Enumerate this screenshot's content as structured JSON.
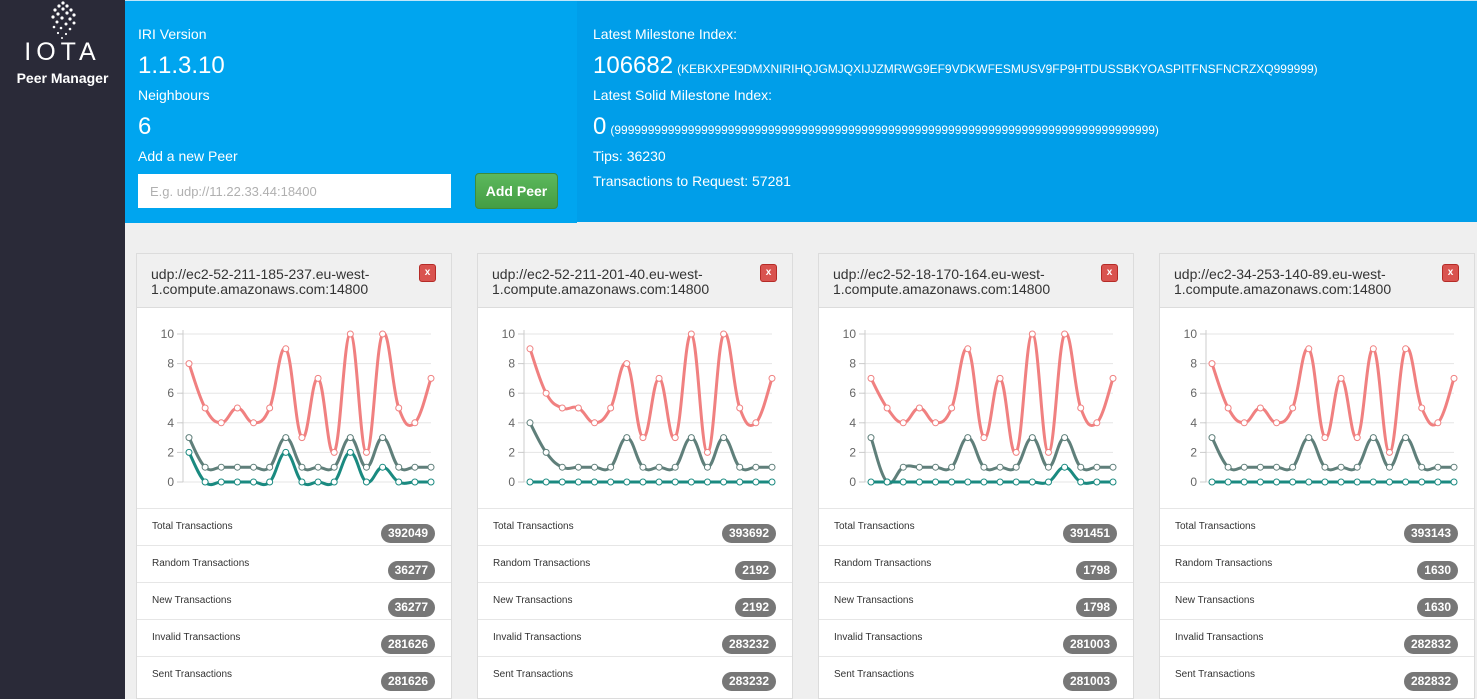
{
  "brand": {
    "name": "IOTA",
    "subtitle": "Peer Manager"
  },
  "header": {
    "iri_version_label": "IRI Version",
    "iri_version": "1.1.3.10",
    "neighbours_label": "Neighbours",
    "neighbours": "6",
    "add_peer_label": "Add a new Peer",
    "add_peer_placeholder": "E.g. udp://11.22.33.44:18400",
    "add_peer_button": "Add Peer",
    "latest_milestone_label": "Latest Milestone Index:",
    "latest_milestone": "106682",
    "latest_milestone_hash": "(KEBKXPE9DMXNIRIHQJGMJQXIJJZMRWG9EF9VDKWFESMUSV9FP9HTDUSSBKYOASPITFNSFNCRZXQ999999)",
    "latest_solid_label": "Latest Solid Milestone Index:",
    "latest_solid": "0",
    "latest_solid_hash": "(999999999999999999999999999999999999999999999999999999999999999999999999999999999)",
    "tips": "Tips: 36230",
    "tx_to_request": "Transactions to Request: 57281"
  },
  "colors": {
    "series_all": "#f08080",
    "series_random": "#5f7f7a",
    "series_new": "#1a8a80",
    "badge": "#777777"
  },
  "stat_labels": [
    "Total Transactions",
    "Random Transactions",
    "New Transactions",
    "Invalid Transactions",
    "Sent Transactions"
  ],
  "peers": [
    {
      "address": "udp://ec2-52-211-185-237.eu-west-1.compute.amazonaws.com:14800",
      "close": "x",
      "stats": [
        "392049",
        "36277",
        "36277",
        "281626",
        "281626"
      ]
    },
    {
      "address": "udp://ec2-52-211-201-40.eu-west-1.compute.amazonaws.com:14800",
      "close": "x",
      "stats": [
        "393692",
        "2192",
        "2192",
        "283232",
        "283232"
      ]
    },
    {
      "address": "udp://ec2-52-18-170-164.eu-west-1.compute.amazonaws.com:14800",
      "close": "x",
      "stats": [
        "391451",
        "1798",
        "1798",
        "281003",
        "281003"
      ]
    },
    {
      "address": "udp://ec2-34-253-140-89.eu-west-1.compute.amazonaws.com:14800",
      "close": "x",
      "stats": [
        "393143",
        "1630",
        "1630",
        "282832",
        "282832"
      ]
    }
  ],
  "chart_data": [
    {
      "type": "line",
      "ylim": [
        0,
        10
      ],
      "yticks": [
        "0",
        "2",
        "4",
        "6",
        "8",
        "10"
      ],
      "series": [
        {
          "values": [
            8,
            5,
            4,
            5,
            4,
            5,
            9,
            3,
            7,
            2,
            10,
            2,
            10,
            5,
            4,
            7
          ]
        },
        {
          "values": [
            3,
            1,
            1,
            1,
            1,
            1,
            3,
            1,
            1,
            1,
            3,
            1,
            3,
            1,
            1,
            1
          ]
        },
        {
          "values": [
            2,
            0,
            0,
            0,
            0,
            0,
            2,
            0,
            0,
            0,
            2,
            0,
            1,
            0,
            0,
            0
          ]
        }
      ]
    },
    {
      "type": "line",
      "ylim": [
        0,
        10
      ],
      "yticks": [
        "0",
        "2",
        "4",
        "6",
        "8",
        "10"
      ],
      "series": [
        {
          "values": [
            9,
            6,
            5,
            5,
            4,
            5,
            8,
            3,
            7,
            3,
            10,
            2,
            10,
            5,
            4,
            7
          ]
        },
        {
          "values": [
            4,
            2,
            1,
            1,
            1,
            1,
            3,
            1,
            1,
            1,
            3,
            1,
            3,
            1,
            1,
            1
          ]
        },
        {
          "values": [
            0,
            0,
            0,
            0,
            0,
            0,
            0,
            0,
            0,
            0,
            0,
            0,
            0,
            0,
            0,
            0
          ]
        }
      ]
    },
    {
      "type": "line",
      "ylim": [
        0,
        10
      ],
      "yticks": [
        "0",
        "2",
        "4",
        "6",
        "8",
        "10"
      ],
      "series": [
        {
          "values": [
            7,
            5,
            4,
            5,
            4,
            5,
            9,
            3,
            7,
            2,
            10,
            2,
            10,
            5,
            4,
            7
          ]
        },
        {
          "values": [
            3,
            0,
            1,
            1,
            1,
            1,
            3,
            1,
            1,
            1,
            3,
            1,
            3,
            1,
            1,
            1
          ]
        },
        {
          "values": [
            0,
            0,
            0,
            0,
            0,
            0,
            0,
            0,
            0,
            0,
            0,
            0,
            1,
            0,
            0,
            0
          ]
        }
      ]
    },
    {
      "type": "line",
      "ylim": [
        0,
        10
      ],
      "yticks": [
        "0",
        "2",
        "4",
        "6",
        "8",
        "10"
      ],
      "series": [
        {
          "values": [
            8,
            5,
            4,
            5,
            4,
            5,
            9,
            3,
            7,
            3,
            9,
            2,
            9,
            5,
            4,
            7
          ]
        },
        {
          "values": [
            3,
            1,
            1,
            1,
            1,
            1,
            3,
            1,
            1,
            1,
            3,
            1,
            3,
            1,
            1,
            1
          ]
        },
        {
          "values": [
            0,
            0,
            0,
            0,
            0,
            0,
            0,
            0,
            0,
            0,
            0,
            0,
            0,
            0,
            0,
            0
          ]
        }
      ]
    }
  ]
}
